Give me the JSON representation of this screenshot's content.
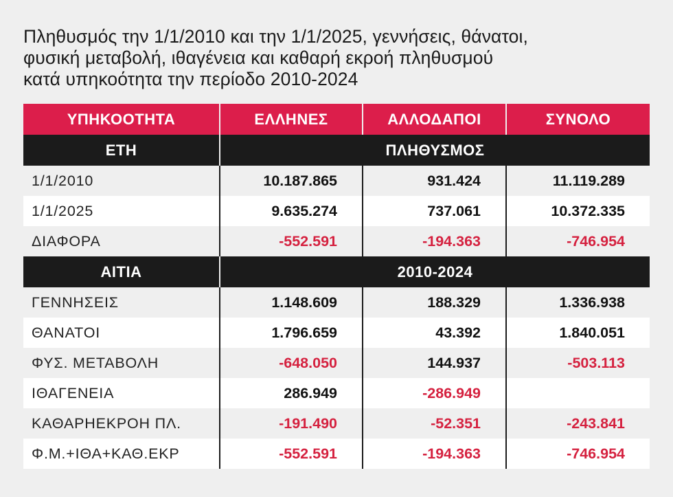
{
  "title_lines": [
    "Πληθυσμός την 1/1/2010 και την 1/1/2025, γεννήσεις, θάνατοι,",
    "φυσική μεταβολή, ιθαγένεια και καθαρή εκροή πληθυσμού",
    "κατά υπηκοότητα την περίοδο 2010-2024"
  ],
  "header": {
    "col1": "ΥΠΗΚΟΟΤΗΤΑ",
    "col2": "ΕΛΛΗΝΕΣ",
    "col3": "ΑΛΛΟΔΑΠΟΙ",
    "col4": "ΣΥΝΟΛΟ"
  },
  "section1": {
    "label": "ΕΤΗ",
    "title": "ΠΛΗΘΥΣΜΟΣ"
  },
  "section1_rows": [
    {
      "label": "1/1/2010",
      "greeks": "10.187.865",
      "foreigners": "931.424",
      "total": "11.119.289"
    },
    {
      "label": "1/1/2025",
      "greeks": "9.635.274",
      "foreigners": "737.061",
      "total": "10.372.335"
    },
    {
      "label": "ΔΙΑΦΟΡΑ",
      "greeks": "-552.591",
      "foreigners": "-194.363",
      "total": "-746.954"
    }
  ],
  "section2": {
    "label": "ΑΙΤΙΑ",
    "title": "2010-2024"
  },
  "section2_rows": [
    {
      "label": "ΓΕΝΝΗΣΕΙΣ",
      "greeks": "1.148.609",
      "foreigners": "188.329",
      "total": "1.336.938"
    },
    {
      "label": "ΘΑΝΑΤΟΙ",
      "greeks": "1.796.659",
      "foreigners": "43.392",
      "total": "1.840.051"
    },
    {
      "label": "ΦΥΣ. ΜΕΤΑΒΟΛΗ",
      "greeks": "-648.050",
      "foreigners": "144.937",
      "total": "-503.113"
    },
    {
      "label": "ΙΘΑΓΕΝΕΙΑ",
      "greeks": "286.949",
      "foreigners": "-286.949",
      "total": ""
    },
    {
      "label": "ΚΑΘΑΡΗΕΚΡΟΗ ΠΛ.",
      "greeks": "-191.490",
      "foreigners": "-52.351",
      "total": "-243.841"
    },
    {
      "label": "Φ.Μ.+ΙΘΑ+ΚΑΘ.ΕΚΡ",
      "greeks": "-552.591",
      "foreigners": "-194.363",
      "total": "-746.954"
    }
  ],
  "colors": {
    "header_red": "#dc1e4b",
    "section_black": "#1b1b1b",
    "negative_red": "#d5213f",
    "background": "#efefef"
  }
}
